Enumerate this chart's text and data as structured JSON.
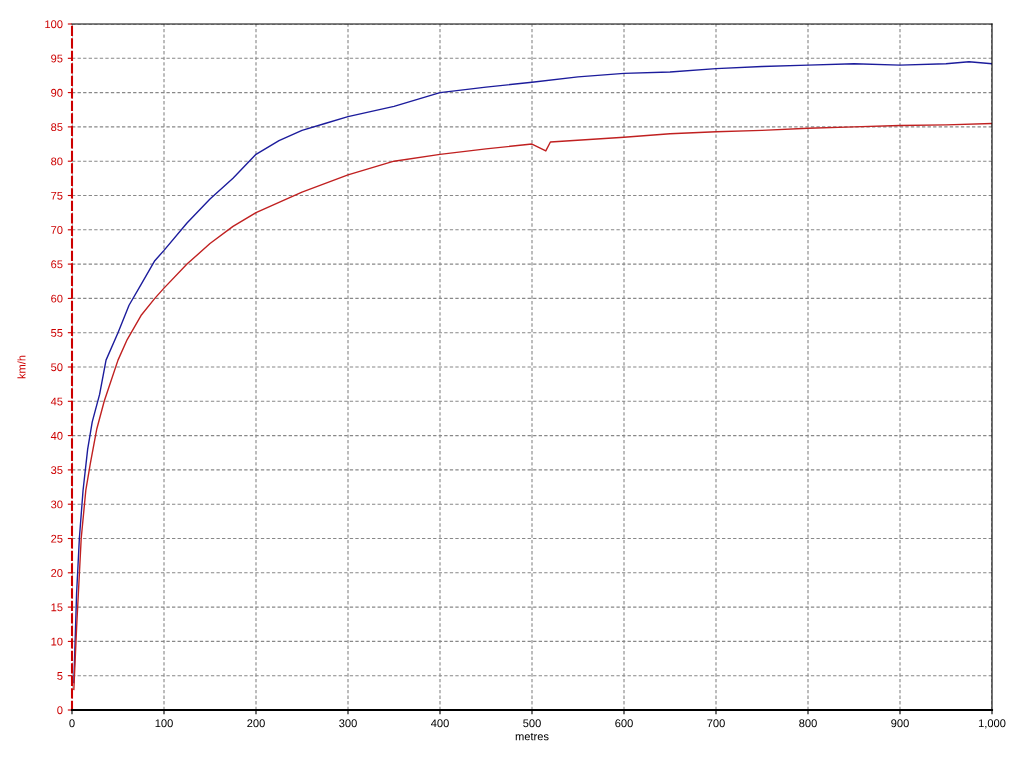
{
  "chart_data": {
    "type": "line",
    "xlabel": "metres",
    "ylabel": "km/h",
    "xlim": [
      0,
      1000
    ],
    "ylim": [
      0,
      100
    ],
    "xticks": [
      0,
      100,
      200,
      300,
      400,
      500,
      600,
      700,
      800,
      900,
      {
        "value": 1000,
        "label": "1,000"
      }
    ],
    "yticks": [
      0,
      5,
      10,
      15,
      20,
      25,
      30,
      35,
      40,
      45,
      50,
      55,
      60,
      65,
      70,
      75,
      80,
      85,
      90,
      95,
      100
    ],
    "grid": true,
    "line_style": "solid",
    "marker": "none",
    "series": [
      {
        "color": "#1c1c9c",
        "x": [
          2,
          5,
          8,
          12,
          17,
          22,
          30,
          37,
          50,
          62,
          75,
          90,
          100,
          125,
          150,
          175,
          200,
          225,
          250,
          275,
          300,
          350,
          400,
          450,
          500,
          550,
          600,
          650,
          700,
          750,
          800,
          850,
          900,
          950,
          975,
          1000
        ],
        "values": [
          4,
          17,
          25,
          32,
          38,
          42,
          46,
          51,
          55,
          59,
          62,
          65.5,
          67,
          71,
          74.5,
          77.5,
          81,
          83,
          84.5,
          85.5,
          86.5,
          88,
          90,
          90.8,
          91.5,
          92.3,
          92.8,
          93,
          93.5,
          93.8,
          94,
          94.2,
          94,
          94.2,
          94.5,
          94.2
        ]
      },
      {
        "color": "#c02020",
        "x": [
          2,
          5,
          10,
          15,
          20,
          27,
          35,
          40,
          50,
          60,
          75,
          90,
          100,
          125,
          150,
          175,
          200,
          250,
          300,
          350,
          400,
          450,
          500,
          515,
          520,
          600,
          650,
          700,
          750,
          800,
          850,
          900,
          950,
          1000
        ],
        "values": [
          3,
          12,
          25,
          32,
          36,
          41,
          45,
          47,
          51,
          54,
          57.5,
          60,
          61.5,
          65,
          68,
          70.5,
          72.5,
          75.5,
          78,
          80,
          81,
          81.8,
          82.5,
          81.5,
          82.8,
          83.5,
          84,
          84.3,
          84.5,
          84.8,
          85,
          85.2,
          85.3,
          85.5
        ]
      }
    ]
  }
}
